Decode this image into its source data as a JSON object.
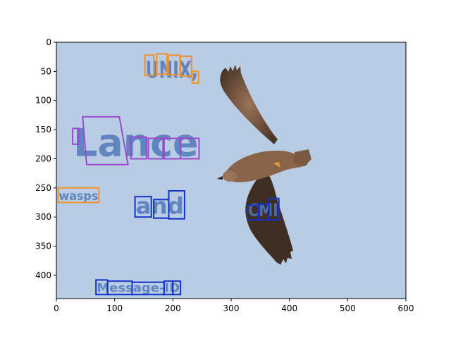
{
  "chart_data": {
    "type": "image_annotation",
    "title": "",
    "xlabel": "",
    "ylabel": "",
    "xlim": [
      0,
      600
    ],
    "ylim": [
      440,
      0
    ],
    "x_ticks": [
      0,
      100,
      200,
      300,
      400,
      500,
      600
    ],
    "y_ticks": [
      0,
      50,
      100,
      150,
      200,
      250,
      300,
      350,
      400
    ],
    "grid": false,
    "colors": {
      "sky": "#b8cde4",
      "box_orange": "#f0922a",
      "box_purple": "#9a48d0",
      "box_blue": "#1432c8",
      "text_blue": "#5078b8",
      "bird_body": "#8a6448",
      "bird_wing_dark": "#3a2c24"
    },
    "words": [
      {
        "text": "UNIX,",
        "color": "orange",
        "boxes": [
          [
            [
              152,
              22
            ],
            [
              167,
              22
            ],
            [
              167,
              57
            ],
            [
              152,
              57
            ]
          ],
          [
            [
              172,
              20
            ],
            [
              190,
              20
            ],
            [
              190,
              55
            ],
            [
              172,
              55
            ]
          ],
          [
            [
              192,
              22
            ],
            [
              212,
              22
            ],
            [
              212,
              56
            ],
            [
              192,
              56
            ]
          ],
          [
            [
              213,
              24
            ],
            [
              232,
              24
            ],
            [
              232,
              58
            ],
            [
              213,
              58
            ]
          ],
          [
            [
              233,
              50
            ],
            [
              244,
              50
            ],
            [
              244,
              70
            ],
            [
              233,
              70
            ]
          ]
        ]
      },
      {
        "text": "Lance",
        "color": "purple",
        "boxes": [
          [
            [
              28,
              148
            ],
            [
              38,
              148
            ],
            [
              38,
              175
            ],
            [
              28,
              175
            ]
          ],
          [
            [
              45,
              128
            ],
            [
              108,
              128
            ],
            [
              123,
              210
            ],
            [
              52,
              210
            ]
          ],
          [
            [
              128,
              163
            ],
            [
              155,
              163
            ],
            [
              155,
              200
            ],
            [
              128,
              200
            ]
          ],
          [
            [
              158,
              165
            ],
            [
              183,
              165
            ],
            [
              183,
              200
            ],
            [
              158,
              200
            ]
          ],
          [
            [
              185,
              165
            ],
            [
              213,
              165
            ],
            [
              213,
              200
            ],
            [
              185,
              200
            ]
          ],
          [
            [
              213,
              165
            ],
            [
              245,
              165
            ],
            [
              245,
              200
            ],
            [
              213,
              200
            ]
          ]
        ]
      },
      {
        "text": "wasps",
        "color": "orange",
        "boxes": [
          [
            [
              3,
              250
            ],
            [
              73,
              250
            ],
            [
              73,
              275
            ],
            [
              3,
              275
            ]
          ]
        ]
      },
      {
        "text": "and",
        "color": "blue",
        "boxes": [
          [
            [
              135,
              265
            ],
            [
              163,
              265
            ],
            [
              163,
              300
            ],
            [
              135,
              300
            ]
          ],
          [
            [
              167,
              270
            ],
            [
              193,
              270
            ],
            [
              193,
              302
            ],
            [
              167,
              302
            ]
          ],
          [
            [
              193,
              255
            ],
            [
              220,
              255
            ],
            [
              220,
              303
            ],
            [
              193,
              303
            ]
          ]
        ]
      },
      {
        "text": "CMI",
        "color": "blue",
        "boxes": [
          [
            [
              328,
              280
            ],
            [
              347,
              280
            ],
            [
              347,
              305
            ],
            [
              328,
              305
            ]
          ],
          [
            [
              347,
              278
            ],
            [
              365,
              278
            ],
            [
              365,
              305
            ],
            [
              347,
              305
            ]
          ],
          [
            [
              365,
              268
            ],
            [
              382,
              268
            ],
            [
              382,
              305
            ],
            [
              365,
              305
            ]
          ]
        ]
      },
      {
        "text": "Message-ID",
        "color": "blue",
        "boxes": [
          [
            [
              68,
              408
            ],
            [
              88,
              408
            ],
            [
              88,
              433
            ],
            [
              68,
              433
            ]
          ],
          [
            [
              88,
              410
            ],
            [
              130,
              410
            ],
            [
              130,
              433
            ],
            [
              88,
              433
            ]
          ],
          [
            [
              130,
              412
            ],
            [
              185,
              412
            ],
            [
              185,
              433
            ],
            [
              130,
              433
            ]
          ],
          [
            [
              185,
              410
            ],
            [
              200,
              410
            ],
            [
              200,
              433
            ],
            [
              185,
              433
            ]
          ],
          [
            [
              200,
              410
            ],
            [
              213,
              410
            ],
            [
              213,
              433
            ],
            [
              200,
              433
            ]
          ]
        ]
      }
    ]
  }
}
